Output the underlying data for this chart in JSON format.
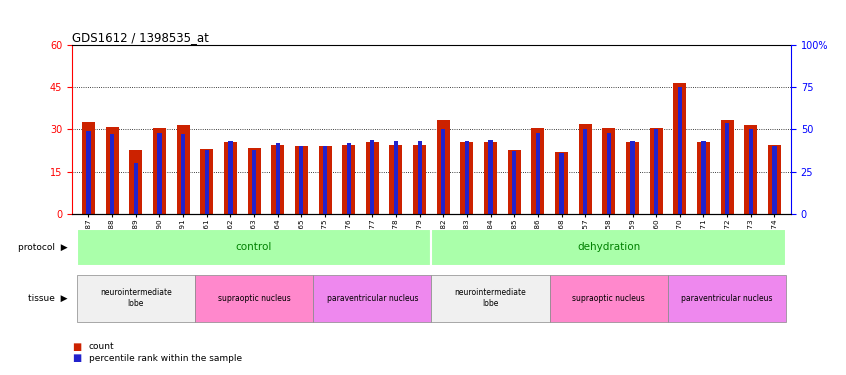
{
  "title": "GDS1612 / 1398535_at",
  "samples": [
    "GSM69787",
    "GSM69788",
    "GSM69789",
    "GSM69790",
    "GSM69791",
    "GSM69461",
    "GSM69462",
    "GSM69463",
    "GSM69464",
    "GSM69465",
    "GSM69475",
    "GSM69476",
    "GSM69477",
    "GSM69478",
    "GSM69479",
    "GSM69782",
    "GSM69783",
    "GSM69784",
    "GSM69785",
    "GSM69786",
    "GSM69268",
    "GSM69457",
    "GSM69458",
    "GSM69459",
    "GSM69460",
    "GSM69470",
    "GSM69471",
    "GSM69472",
    "GSM69473",
    "GSM69474"
  ],
  "red_values": [
    32.5,
    31.0,
    22.5,
    30.5,
    31.5,
    23.0,
    25.5,
    23.5,
    24.5,
    24.0,
    24.0,
    24.5,
    25.5,
    24.5,
    24.5,
    33.5,
    25.5,
    25.5,
    22.5,
    30.5,
    22.0,
    32.0,
    30.5,
    25.5,
    30.5,
    46.5,
    25.5,
    33.5,
    31.5,
    24.5
  ],
  "blue_values_pct": [
    49,
    47,
    30,
    48,
    47,
    38,
    43,
    38,
    42,
    40,
    40,
    42,
    44,
    43,
    43,
    50,
    43,
    44,
    37,
    48,
    36,
    50,
    48,
    43,
    50,
    75,
    43,
    54,
    50,
    40
  ],
  "ylim_left": [
    0,
    60
  ],
  "ylim_right": [
    0,
    100
  ],
  "yticks_left": [
    0,
    15,
    30,
    45,
    60
  ],
  "yticks_right": [
    0,
    25,
    50,
    75,
    100
  ],
  "bar_color_red": "#CC2200",
  "bar_color_blue": "#2222CC",
  "protocol_groups": [
    {
      "label": "control",
      "start": 0,
      "end": 14,
      "color": "#aaffaa"
    },
    {
      "label": "dehydration",
      "start": 15,
      "end": 29,
      "color": "#aaffaa"
    }
  ],
  "tissue_groups": [
    {
      "label": "neurointermediate\nlobe",
      "start": 0,
      "end": 4,
      "color": "#f0f0f0"
    },
    {
      "label": "supraoptic nucleus",
      "start": 5,
      "end": 9,
      "color": "#FF88CC"
    },
    {
      "label": "paraventricular nucleus",
      "start": 10,
      "end": 14,
      "color": "#EE88EE"
    },
    {
      "label": "neurointermediate\nlobe",
      "start": 15,
      "end": 19,
      "color": "#f0f0f0"
    },
    {
      "label": "supraoptic nucleus",
      "start": 20,
      "end": 24,
      "color": "#FF88CC"
    },
    {
      "label": "paraventricular nucleus",
      "start": 25,
      "end": 29,
      "color": "#EE88EE"
    }
  ]
}
